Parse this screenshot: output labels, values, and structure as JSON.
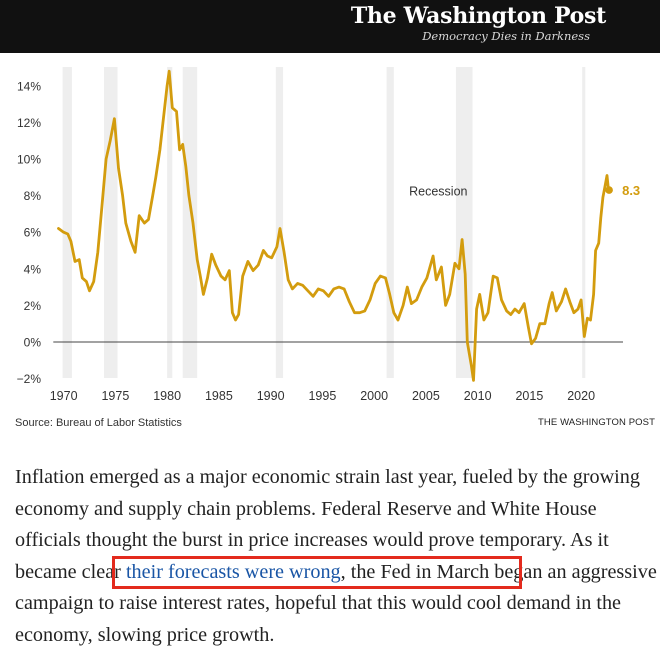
{
  "masthead": {
    "logo_text": "The Washington Post",
    "tagline": "Democracy Dies in Darkness",
    "background": "#111111"
  },
  "chart_data": {
    "type": "line",
    "ylim": [
      -2,
      15
    ],
    "xlim": [
      1969,
      2023
    ],
    "y_ticks": [
      -2,
      0,
      2,
      4,
      6,
      8,
      10,
      12,
      14
    ],
    "y_tick_labels": [
      "−2%",
      "0%",
      "2%",
      "4%",
      "6%",
      "8%",
      "10%",
      "12%",
      "14%"
    ],
    "x_ticks": [
      1970,
      1975,
      1980,
      1985,
      1990,
      1995,
      2000,
      2005,
      2010,
      2015,
      2020
    ],
    "x_tick_labels": [
      "1970",
      "1975",
      "1980",
      "1985",
      "1990",
      "1995",
      "2000",
      "2005",
      "2010",
      "2015",
      "2020"
    ],
    "line_color": "#d39c0e",
    "recession_color": "#eeeeee",
    "recession_label": "Recession",
    "recessions": [
      [
        1969.9,
        1970.8
      ],
      [
        1973.9,
        1975.2
      ],
      [
        1980.0,
        1980.5
      ],
      [
        1981.5,
        1982.9
      ],
      [
        1990.5,
        1991.2
      ],
      [
        2001.2,
        2001.9
      ],
      [
        2007.9,
        2009.5
      ],
      [
        2020.1,
        2020.4
      ]
    ],
    "end_label": "8.3",
    "series": [
      {
        "values": [
          [
            1969.5,
            6.2
          ],
          [
            1970.0,
            6.0
          ],
          [
            1970.4,
            5.9
          ],
          [
            1970.7,
            5.5
          ],
          [
            1971.1,
            4.4
          ],
          [
            1971.5,
            4.5
          ],
          [
            1971.8,
            3.5
          ],
          [
            1972.2,
            3.3
          ],
          [
            1972.5,
            2.8
          ],
          [
            1972.9,
            3.3
          ],
          [
            1973.3,
            4.9
          ],
          [
            1973.7,
            7.4
          ],
          [
            1974.1,
            10.0
          ],
          [
            1974.5,
            11.0
          ],
          [
            1974.9,
            12.2
          ],
          [
            1975.3,
            9.5
          ],
          [
            1975.7,
            8.0
          ],
          [
            1976.0,
            6.5
          ],
          [
            1976.5,
            5.5
          ],
          [
            1976.9,
            4.9
          ],
          [
            1977.3,
            6.9
          ],
          [
            1977.8,
            6.5
          ],
          [
            1978.2,
            6.7
          ],
          [
            1978.6,
            8.0
          ],
          [
            1978.9,
            9.0
          ],
          [
            1979.3,
            10.5
          ],
          [
            1979.7,
            12.5
          ],
          [
            1980.0,
            14.0
          ],
          [
            1980.2,
            14.8
          ],
          [
            1980.5,
            12.8
          ],
          [
            1980.9,
            12.6
          ],
          [
            1981.2,
            10.5
          ],
          [
            1981.5,
            10.8
          ],
          [
            1981.8,
            9.6
          ],
          [
            1982.1,
            8.0
          ],
          [
            1982.5,
            6.5
          ],
          [
            1982.9,
            4.5
          ],
          [
            1983.2,
            3.6
          ],
          [
            1983.5,
            2.6
          ],
          [
            1983.9,
            3.5
          ],
          [
            1984.3,
            4.8
          ],
          [
            1984.7,
            4.2
          ],
          [
            1985.2,
            3.6
          ],
          [
            1985.6,
            3.4
          ],
          [
            1986.0,
            3.9
          ],
          [
            1986.3,
            1.6
          ],
          [
            1986.6,
            1.2
          ],
          [
            1986.9,
            1.5
          ],
          [
            1987.3,
            3.6
          ],
          [
            1987.8,
            4.4
          ],
          [
            1988.3,
            3.9
          ],
          [
            1988.8,
            4.2
          ],
          [
            1989.3,
            5.0
          ],
          [
            1989.7,
            4.7
          ],
          [
            1990.1,
            4.6
          ],
          [
            1990.6,
            5.2
          ],
          [
            1990.9,
            6.2
          ],
          [
            1991.3,
            4.9
          ],
          [
            1991.7,
            3.4
          ],
          [
            1992.1,
            2.9
          ],
          [
            1992.6,
            3.2
          ],
          [
            1993.1,
            3.1
          ],
          [
            1993.6,
            2.8
          ],
          [
            1994.1,
            2.5
          ],
          [
            1994.6,
            2.9
          ],
          [
            1995.1,
            2.8
          ],
          [
            1995.6,
            2.5
          ],
          [
            1996.1,
            2.9
          ],
          [
            1996.6,
            3.0
          ],
          [
            1997.1,
            2.9
          ],
          [
            1997.6,
            2.2
          ],
          [
            1998.1,
            1.6
          ],
          [
            1998.6,
            1.6
          ],
          [
            1999.1,
            1.7
          ],
          [
            1999.6,
            2.3
          ],
          [
            2000.1,
            3.2
          ],
          [
            2000.6,
            3.6
          ],
          [
            2001.1,
            3.5
          ],
          [
            2001.5,
            2.6
          ],
          [
            2001.9,
            1.6
          ],
          [
            2002.3,
            1.2
          ],
          [
            2002.8,
            2.0
          ],
          [
            2003.2,
            3.0
          ],
          [
            2003.6,
            2.1
          ],
          [
            2004.1,
            2.3
          ],
          [
            2004.6,
            3.0
          ],
          [
            2005.1,
            3.5
          ],
          [
            2005.7,
            4.7
          ],
          [
            2006.0,
            3.4
          ],
          [
            2006.5,
            4.1
          ],
          [
            2006.9,
            2.0
          ],
          [
            2007.3,
            2.6
          ],
          [
            2007.8,
            4.3
          ],
          [
            2008.2,
            4.0
          ],
          [
            2008.5,
            5.6
          ],
          [
            2008.8,
            3.7
          ],
          [
            2009.0,
            0.0
          ],
          [
            2009.4,
            -1.3
          ],
          [
            2009.6,
            -2.1
          ],
          [
            2009.9,
            1.8
          ],
          [
            2010.2,
            2.6
          ],
          [
            2010.6,
            1.2
          ],
          [
            2011.0,
            1.6
          ],
          [
            2011.5,
            3.6
          ],
          [
            2011.9,
            3.5
          ],
          [
            2012.3,
            2.3
          ],
          [
            2012.8,
            1.7
          ],
          [
            2013.2,
            1.5
          ],
          [
            2013.6,
            1.8
          ],
          [
            2014.0,
            1.6
          ],
          [
            2014.5,
            2.1
          ],
          [
            2014.9,
            0.8
          ],
          [
            2015.2,
            -0.1
          ],
          [
            2015.6,
            0.2
          ],
          [
            2016.0,
            1.0
          ],
          [
            2016.5,
            1.0
          ],
          [
            2016.9,
            2.1
          ],
          [
            2017.2,
            2.7
          ],
          [
            2017.6,
            1.7
          ],
          [
            2018.1,
            2.2
          ],
          [
            2018.5,
            2.9
          ],
          [
            2018.9,
            2.2
          ],
          [
            2019.3,
            1.6
          ],
          [
            2019.7,
            1.8
          ],
          [
            2020.0,
            2.3
          ],
          [
            2020.3,
            0.3
          ],
          [
            2020.6,
            1.3
          ],
          [
            2020.9,
            1.2
          ],
          [
            2021.2,
            2.6
          ],
          [
            2021.4,
            5.0
          ],
          [
            2021.7,
            5.4
          ],
          [
            2021.9,
            6.8
          ],
          [
            2022.1,
            7.9
          ],
          [
            2022.3,
            8.5
          ],
          [
            2022.5,
            9.1
          ],
          [
            2022.6,
            8.5
          ],
          [
            2022.7,
            8.3
          ]
        ]
      }
    ]
  },
  "source_text": "Source: Bureau of Labor Statistics",
  "credit_text": "THE WASHINGTON POST",
  "article": {
    "text_before": "Inflation emerged as a major economic strain last year, fueled by the growing economy and supply chain problems. Federal Reserve and White House officials thought the burst in price increases would prove temporary. ",
    "highlight_prefix": "As it became clear ",
    "link_text": "their forecasts were wrong",
    "highlight_suffix": ",",
    "text_after": " the Fed in March began an aggressive campaign to raise interest rates, hopeful that this would cool demand in the economy, slowing price growth.",
    "link_color": "#1955a5",
    "highlight_color": "#e32a1d"
  }
}
